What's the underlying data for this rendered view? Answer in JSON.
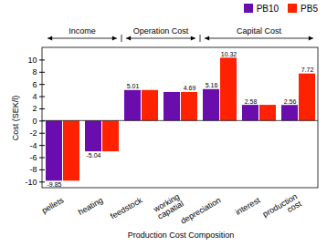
{
  "chart_data": {
    "type": "bar",
    "xlabel": "Production Cost Composition",
    "ylabel": "Cost (SEK/l)",
    "categories": [
      "pellets",
      "heating",
      "feedstock",
      "working\ncapatial",
      "depreciation",
      "interest",
      "production\ncost"
    ],
    "series": [
      {
        "name": "PB10",
        "color": "#6a0dad",
        "values": [
          -9.85,
          -5.04,
          5.01,
          4.69,
          5.16,
          2.58,
          2.56
        ],
        "value_labels": [
          "-9.85",
          "-5.04",
          "5.01",
          null,
          "5.16",
          "2.58",
          "2.56"
        ]
      },
      {
        "name": "PB5",
        "color": "#ff2200",
        "values": [
          -9.85,
          -5.04,
          5.01,
          4.69,
          10.32,
          2.58,
          7.72
        ],
        "value_labels": [
          null,
          null,
          null,
          "4.69",
          "10.32",
          null,
          "7.72"
        ]
      }
    ],
    "ylim": [
      -11,
      12
    ],
    "yticks": [
      -10,
      -8,
      -6,
      -4,
      -2,
      0,
      2,
      4,
      6,
      8,
      10
    ],
    "grid": false,
    "legend": "upper right",
    "data_labels": true,
    "annotations": [
      {
        "text": "Income",
        "categories": [
          "pellets",
          "heating"
        ]
      },
      {
        "text": "Operation Cost",
        "categories": [
          "feedstock",
          "working\ncapatial"
        ]
      },
      {
        "text": "Capital Cost",
        "categories": [
          "depreciation",
          "interest",
          "production\ncost"
        ]
      }
    ]
  }
}
